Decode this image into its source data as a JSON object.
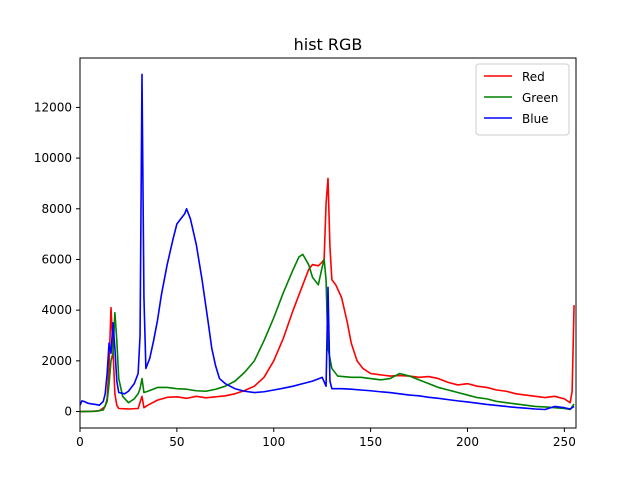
{
  "chart_data": {
    "type": "line",
    "title": "hist RGB",
    "xlabel": "",
    "ylabel": "",
    "xlim": [
      0,
      256
    ],
    "ylim": [
      -650,
      13950
    ],
    "x_ticks": [
      0,
      50,
      100,
      150,
      200,
      250
    ],
    "y_ticks": [
      0,
      2000,
      4000,
      6000,
      8000,
      10000,
      12000
    ],
    "grid": false,
    "legend_position": "top-right",
    "series": [
      {
        "name": "Red",
        "color": "#ff0000",
        "points": [
          [
            0,
            0
          ],
          [
            6,
            10
          ],
          [
            10,
            30
          ],
          [
            13,
            200
          ],
          [
            14,
            500
          ],
          [
            15,
            1800
          ],
          [
            16,
            4100
          ],
          [
            17,
            2500
          ],
          [
            18,
            700
          ],
          [
            19,
            250
          ],
          [
            20,
            120
          ],
          [
            25,
            100
          ],
          [
            30,
            120
          ],
          [
            32,
            600
          ],
          [
            33,
            150
          ],
          [
            35,
            250
          ],
          [
            40,
            450
          ],
          [
            45,
            560
          ],
          [
            50,
            580
          ],
          [
            55,
            520
          ],
          [
            60,
            600
          ],
          [
            65,
            540
          ],
          [
            70,
            580
          ],
          [
            75,
            620
          ],
          [
            80,
            700
          ],
          [
            85,
            830
          ],
          [
            90,
            1000
          ],
          [
            95,
            1350
          ],
          [
            100,
            2000
          ],
          [
            105,
            2900
          ],
          [
            110,
            4000
          ],
          [
            115,
            5000
          ],
          [
            118,
            5600
          ],
          [
            120,
            5800
          ],
          [
            123,
            5750
          ],
          [
            125,
            5900
          ],
          [
            126,
            6000
          ],
          [
            127,
            8200
          ],
          [
            128,
            9200
          ],
          [
            129,
            6500
          ],
          [
            130,
            5200
          ],
          [
            132,
            5000
          ],
          [
            135,
            4500
          ],
          [
            138,
            3500
          ],
          [
            140,
            2700
          ],
          [
            143,
            2000
          ],
          [
            146,
            1700
          ],
          [
            150,
            1500
          ],
          [
            155,
            1450
          ],
          [
            160,
            1400
          ],
          [
            165,
            1420
          ],
          [
            170,
            1400
          ],
          [
            175,
            1350
          ],
          [
            180,
            1380
          ],
          [
            185,
            1300
          ],
          [
            190,
            1150
          ],
          [
            195,
            1050
          ],
          [
            200,
            1100
          ],
          [
            205,
            1000
          ],
          [
            210,
            950
          ],
          [
            215,
            850
          ],
          [
            220,
            800
          ],
          [
            225,
            700
          ],
          [
            230,
            650
          ],
          [
            235,
            600
          ],
          [
            240,
            550
          ],
          [
            245,
            600
          ],
          [
            250,
            500
          ],
          [
            253,
            350
          ],
          [
            254,
            800
          ],
          [
            255,
            4200
          ]
        ]
      },
      {
        "name": "Green",
        "color": "#008000",
        "points": [
          [
            0,
            0
          ],
          [
            8,
            10
          ],
          [
            12,
            60
          ],
          [
            14,
            400
          ],
          [
            15,
            1100
          ],
          [
            16,
            2000
          ],
          [
            17,
            2300
          ],
          [
            18,
            3900
          ],
          [
            19,
            2800
          ],
          [
            20,
            1300
          ],
          [
            22,
            600
          ],
          [
            25,
            350
          ],
          [
            28,
            500
          ],
          [
            30,
            700
          ],
          [
            31,
            900
          ],
          [
            32,
            1300
          ],
          [
            33,
            750
          ],
          [
            35,
            800
          ],
          [
            40,
            950
          ],
          [
            45,
            950
          ],
          [
            50,
            900
          ],
          [
            55,
            880
          ],
          [
            60,
            820
          ],
          [
            65,
            800
          ],
          [
            70,
            880
          ],
          [
            75,
            1000
          ],
          [
            80,
            1200
          ],
          [
            85,
            1550
          ],
          [
            90,
            2000
          ],
          [
            95,
            2800
          ],
          [
            100,
            3700
          ],
          [
            105,
            4700
          ],
          [
            110,
            5600
          ],
          [
            113,
            6100
          ],
          [
            115,
            6200
          ],
          [
            118,
            5800
          ],
          [
            120,
            5300
          ],
          [
            123,
            5000
          ],
          [
            125,
            5700
          ],
          [
            126,
            6000
          ],
          [
            127,
            5200
          ],
          [
            128,
            2500
          ],
          [
            130,
            1700
          ],
          [
            133,
            1400
          ],
          [
            140,
            1350
          ],
          [
            145,
            1350
          ],
          [
            150,
            1300
          ],
          [
            155,
            1250
          ],
          [
            160,
            1300
          ],
          [
            165,
            1500
          ],
          [
            170,
            1400
          ],
          [
            175,
            1250
          ],
          [
            180,
            1100
          ],
          [
            185,
            950
          ],
          [
            190,
            850
          ],
          [
            195,
            750
          ],
          [
            200,
            650
          ],
          [
            205,
            550
          ],
          [
            210,
            500
          ],
          [
            215,
            400
          ],
          [
            220,
            350
          ],
          [
            225,
            300
          ],
          [
            230,
            250
          ],
          [
            235,
            200
          ],
          [
            240,
            180
          ],
          [
            245,
            150
          ],
          [
            250,
            120
          ],
          [
            253,
            80
          ],
          [
            255,
            300
          ]
        ]
      },
      {
        "name": "Blue",
        "color": "#0000ff",
        "points": [
          [
            0,
            250
          ],
          [
            1,
            420
          ],
          [
            2,
            400
          ],
          [
            4,
            330
          ],
          [
            6,
            300
          ],
          [
            8,
            280
          ],
          [
            10,
            250
          ],
          [
            12,
            400
          ],
          [
            13,
            700
          ],
          [
            14,
            1500
          ],
          [
            15,
            2700
          ],
          [
            16,
            2300
          ],
          [
            17,
            3500
          ],
          [
            18,
            2500
          ],
          [
            19,
            1200
          ],
          [
            20,
            750
          ],
          [
            23,
            700
          ],
          [
            25,
            800
          ],
          [
            28,
            1100
          ],
          [
            30,
            1500
          ],
          [
            31,
            3000
          ],
          [
            32,
            13300
          ],
          [
            33,
            4500
          ],
          [
            34,
            1700
          ],
          [
            36,
            2100
          ],
          [
            38,
            2800
          ],
          [
            40,
            3600
          ],
          [
            42,
            4600
          ],
          [
            45,
            5800
          ],
          [
            48,
            6800
          ],
          [
            50,
            7400
          ],
          [
            52,
            7600
          ],
          [
            54,
            7800
          ],
          [
            55,
            8000
          ],
          [
            57,
            7600
          ],
          [
            60,
            6600
          ],
          [
            63,
            5200
          ],
          [
            66,
            3600
          ],
          [
            68,
            2500
          ],
          [
            70,
            1800
          ],
          [
            72,
            1300
          ],
          [
            75,
            1100
          ],
          [
            80,
            900
          ],
          [
            85,
            800
          ],
          [
            90,
            750
          ],
          [
            95,
            780
          ],
          [
            100,
            850
          ],
          [
            105,
            920
          ],
          [
            110,
            1000
          ],
          [
            115,
            1100
          ],
          [
            120,
            1200
          ],
          [
            125,
            1350
          ],
          [
            127,
            1000
          ],
          [
            128,
            4900
          ],
          [
            129,
            1200
          ],
          [
            130,
            900
          ],
          [
            135,
            900
          ],
          [
            140,
            880
          ],
          [
            145,
            850
          ],
          [
            150,
            820
          ],
          [
            155,
            780
          ],
          [
            160,
            750
          ],
          [
            165,
            700
          ],
          [
            170,
            650
          ],
          [
            175,
            620
          ],
          [
            180,
            560
          ],
          [
            185,
            520
          ],
          [
            190,
            470
          ],
          [
            195,
            420
          ],
          [
            200,
            380
          ],
          [
            205,
            330
          ],
          [
            210,
            280
          ],
          [
            215,
            240
          ],
          [
            220,
            200
          ],
          [
            225,
            160
          ],
          [
            230,
            130
          ],
          [
            235,
            100
          ],
          [
            240,
            80
          ],
          [
            245,
            200
          ],
          [
            250,
            150
          ],
          [
            253,
            100
          ],
          [
            255,
            200
          ]
        ]
      }
    ]
  }
}
